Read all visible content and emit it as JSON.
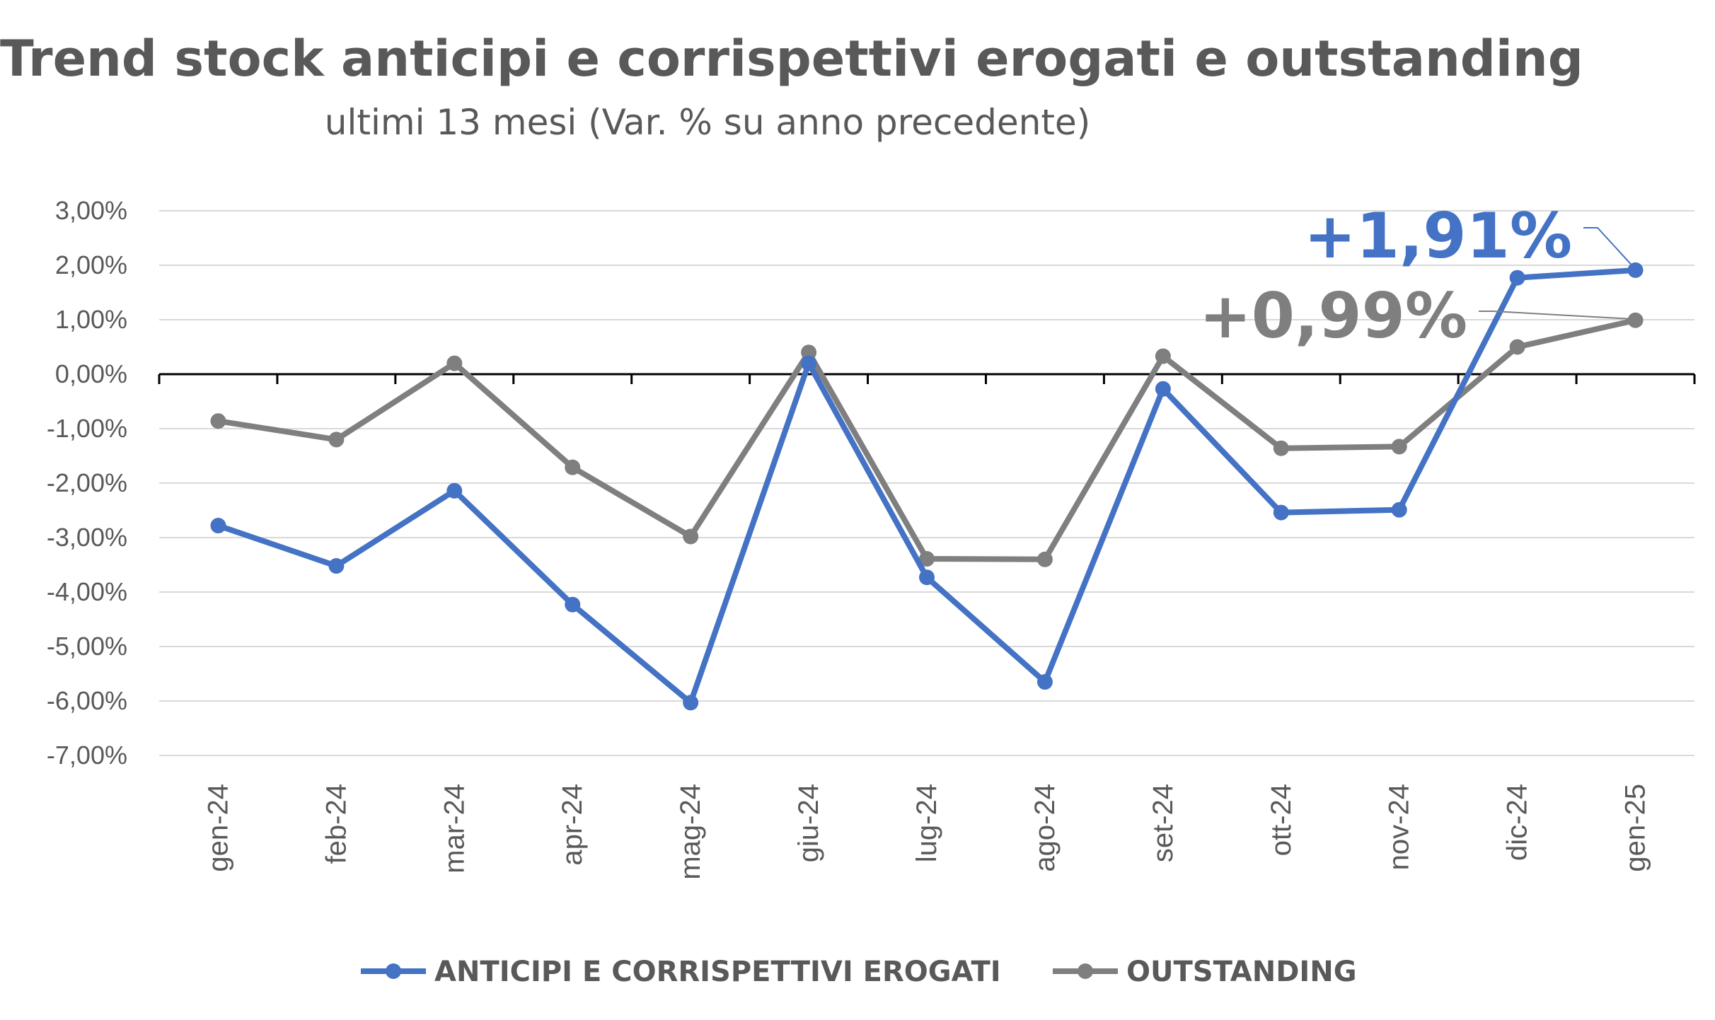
{
  "chart_data": {
    "type": "line",
    "title": "Trend stock anticipi e corrispettivi erogati e outstanding",
    "subtitle": "ultimi 13 mesi (Var. % su anno precedente)",
    "categories": [
      "gen-24",
      "feb-24",
      "mar-24",
      "apr-24",
      "mag-24",
      "giu-24",
      "lug-24",
      "ago-24",
      "set-24",
      "ott-24",
      "nov-24",
      "dic-24",
      "gen-25"
    ],
    "yticks": [
      "3,00%",
      "2,00%",
      "1,00%",
      "0,00%",
      "-1,00%",
      "-2,00%",
      "-3,00%",
      "-4,00%",
      "-5,00%",
      "-6,00%",
      "-7,00%"
    ],
    "ylim": [
      -7,
      3
    ],
    "grid": true,
    "legend_position": "bottom",
    "series": [
      {
        "name": "ANTICIPI E CORRISPETTIVI EROGATI",
        "color": "#4472C4",
        "values": [
          -2.78,
          -3.52,
          -2.14,
          -4.23,
          -6.03,
          0.2,
          -3.73,
          -5.65,
          -0.27,
          -2.54,
          -2.49,
          1.77,
          1.91
        ]
      },
      {
        "name": "OUTSTANDING",
        "color": "#7F7F7F",
        "values": [
          -0.86,
          -1.2,
          0.2,
          -1.71,
          -2.98,
          0.4,
          -3.39,
          -3.4,
          0.33,
          -1.36,
          -1.33,
          0.5,
          0.99
        ]
      }
    ],
    "annotations": [
      {
        "text": "+1,91%",
        "series": 0,
        "color": "#4472C4"
      },
      {
        "text": "+0,99%",
        "series": 1,
        "color": "#7F7F7F"
      }
    ]
  }
}
